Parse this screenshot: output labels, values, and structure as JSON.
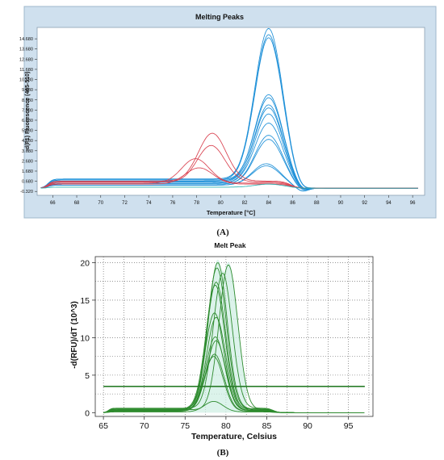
{
  "captions": {
    "a": "(A)",
    "b": "(B)"
  },
  "chart_data": [
    {
      "type": "line",
      "title": "Melting Peaks",
      "xlabel": "Temperature [°C]",
      "ylabel": "-d(F1) Fluorescence (465-510)",
      "xlim": [
        64.7,
        97
      ],
      "ylim": [
        -0.7,
        15.8
      ],
      "x_ticks": [
        "66",
        "68",
        "70",
        "72",
        "74",
        "76",
        "78",
        "80",
        "82",
        "84",
        "86",
        "88",
        "90",
        "92",
        "94",
        "96"
      ],
      "y_ticks": [
        "-0.320",
        "0.680",
        "1.680",
        "2.680",
        "3.680",
        "4.680",
        "5.680",
        "6.680",
        "7.680",
        "8.680",
        "9.680",
        "10.680",
        "11.680",
        "12.680",
        "13.680",
        "14.680"
      ],
      "grid": false,
      "colors": {
        "frame_bg": "#cfe0ee",
        "plot_bg": "#ffffff",
        "series_blue": "#1e90d8",
        "series_red": "#d9414f",
        "series_teal": "#27b3b3"
      },
      "series": [
        {
          "color": "#1e90d8",
          "baseline": 0.9,
          "peaks": [
            {
              "center": 84.0,
              "height": 14.8
            }
          ]
        },
        {
          "color": "#1e90d8",
          "baseline": 0.8,
          "peaks": [
            {
              "center": 84.0,
              "height": 14.3
            }
          ]
        },
        {
          "color": "#1e90d8",
          "baseline": 0.9,
          "peaks": [
            {
              "center": 84.0,
              "height": 13.9
            }
          ]
        },
        {
          "color": "#1e90d8",
          "baseline": 0.7,
          "peaks": [
            {
              "center": 84.0,
              "height": 8.5
            }
          ]
        },
        {
          "color": "#1e90d8",
          "baseline": 0.8,
          "peaks": [
            {
              "center": 84.0,
              "height": 8.1
            }
          ]
        },
        {
          "color": "#1e90d8",
          "baseline": 0.6,
          "peaks": [
            {
              "center": 84.0,
              "height": 7.6
            }
          ]
        },
        {
          "color": "#1e90d8",
          "baseline": 0.7,
          "peaks": [
            {
              "center": 84.0,
              "height": 7.2
            }
          ]
        },
        {
          "color": "#1e90d8",
          "baseline": 0.5,
          "peaks": [
            {
              "center": 84.0,
              "height": 6.8
            }
          ]
        },
        {
          "color": "#1e90d8",
          "baseline": 0.5,
          "peaks": [
            {
              "center": 84.0,
              "height": 5.9
            }
          ]
        },
        {
          "color": "#1e90d8",
          "baseline": 0.4,
          "peaks": [
            {
              "center": 84.0,
              "height": 4.8
            }
          ]
        },
        {
          "color": "#1e90d8",
          "baseline": 0.4,
          "peaks": [
            {
              "center": 84.0,
              "height": 4.4
            }
          ]
        },
        {
          "color": "#1e90d8",
          "baseline": 0.3,
          "peaks": [
            {
              "center": 83.8,
              "height": 2.1
            }
          ]
        },
        {
          "color": "#1e90d8",
          "baseline": 0.3,
          "peaks": [
            {
              "center": 83.8,
              "height": 1.9
            }
          ]
        },
        {
          "color": "#d9414f",
          "baseline": 0.7,
          "peaks": [
            {
              "center": 79.3,
              "height": 4.7
            }
          ]
        },
        {
          "color": "#d9414f",
          "baseline": 0.6,
          "peaks": [
            {
              "center": 79.2,
              "height": 3.6
            }
          ]
        },
        {
          "color": "#d9414f",
          "baseline": 0.5,
          "peaks": [
            {
              "center": 77.9,
              "height": 2.4
            }
          ]
        },
        {
          "color": "#d9414f",
          "baseline": 0.4,
          "peaks": [
            {
              "center": 78.2,
              "height": 1.6
            }
          ]
        },
        {
          "color": "#27b3b3",
          "baseline": 0.1,
          "peaks": [
            {
              "center": 84.0,
              "height": 0.3
            }
          ]
        }
      ]
    },
    {
      "type": "line",
      "title": "Melt Peak",
      "xlabel": "Temperature, Celsius",
      "ylabel": "-d(RFU)/dT  (10^3)",
      "xlim": [
        64,
        98
      ],
      "ylim": [
        -0.5,
        20.8
      ],
      "x_ticks": [
        "65",
        "70",
        "75",
        "80",
        "85",
        "90",
        "95"
      ],
      "y_ticks": [
        "0",
        "5",
        "10",
        "15",
        "20"
      ],
      "grid": true,
      "threshold": 3.5,
      "colors": {
        "series_green": "#2e8b2e",
        "threshold": "#2a7d2a",
        "shade": "#cdeee2"
      },
      "series": [
        {
          "color": "#2e8b2e",
          "baseline": 0.5,
          "peaks": [
            {
              "center": 79.0,
              "height": 19.5
            }
          ]
        },
        {
          "color": "#2e8b2e",
          "baseline": 0.4,
          "peaks": [
            {
              "center": 80.3,
              "height": 19.3
            }
          ]
        },
        {
          "color": "#2e8b2e",
          "baseline": 0.5,
          "peaks": [
            {
              "center": 78.9,
              "height": 18.8
            }
          ]
        },
        {
          "color": "#2e8b2e",
          "baseline": 0.6,
          "peaks": [
            {
              "center": 79.6,
              "height": 18.0
            }
          ]
        },
        {
          "color": "#2e8b2e",
          "baseline": 0.4,
          "peaks": [
            {
              "center": 78.8,
              "height": 17.0
            }
          ]
        },
        {
          "color": "#2e8b2e",
          "baseline": 0.5,
          "peaks": [
            {
              "center": 78.7,
              "height": 16.5
            }
          ]
        },
        {
          "color": "#2e8b2e",
          "baseline": 0.3,
          "peaks": [
            {
              "center": 78.6,
              "height": 13.0
            }
          ]
        },
        {
          "color": "#2e8b2e",
          "baseline": 0.3,
          "peaks": [
            {
              "center": 78.8,
              "height": 12.4
            }
          ]
        },
        {
          "color": "#2e8b2e",
          "baseline": 0.3,
          "peaks": [
            {
              "center": 78.7,
              "height": 9.8
            }
          ]
        },
        {
          "color": "#2e8b2e",
          "baseline": 0.3,
          "peaks": [
            {
              "center": 78.8,
              "height": 9.3
            }
          ]
        },
        {
          "color": "#2e8b2e",
          "baseline": 0.2,
          "peaks": [
            {
              "center": 78.6,
              "height": 7.6
            }
          ]
        },
        {
          "color": "#2e8b2e",
          "baseline": 0.2,
          "peaks": [
            {
              "center": 78.5,
              "height": 7.3
            }
          ]
        },
        {
          "color": "#2e8b2e",
          "baseline": 0.1,
          "peaks": [
            {
              "center": 78.5,
              "height": 1.4
            }
          ]
        }
      ]
    }
  ]
}
